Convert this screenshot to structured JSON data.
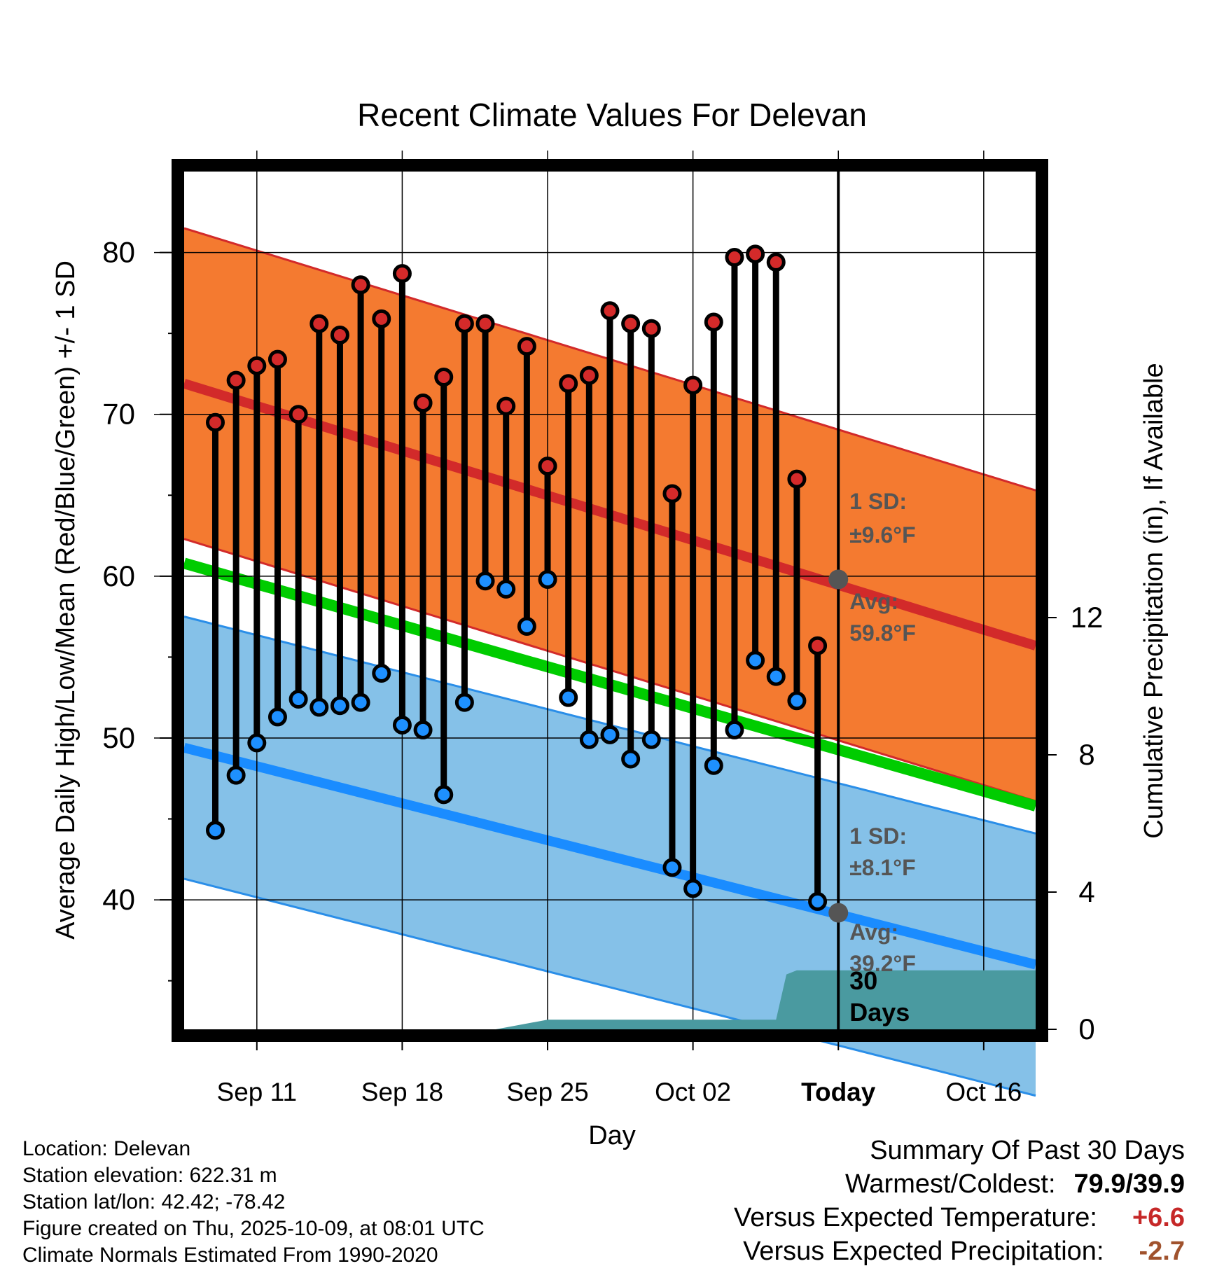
{
  "chart_data": {
    "type": "line",
    "title": "Recent Climate Values For Delevan",
    "xlabel": "Day",
    "ylabel": "Average Daily High/Low/Mean (Red/Blue/Green) +/- 1 SD",
    "y2label": "Cumulative Precipitation (in), If Available",
    "xlim": [
      -1.5,
      39.5
    ],
    "ylim": [
      32,
      85
    ],
    "y2lim": [
      0,
      25
    ],
    "x_ticks": [
      {
        "day": 2,
        "label": "Sep 11"
      },
      {
        "day": 9,
        "label": "Sep 18"
      },
      {
        "day": 16,
        "label": "Sep 25"
      },
      {
        "day": 23,
        "label": "Oct 02"
      },
      {
        "day": 30,
        "label": "Today"
      },
      {
        "day": 37,
        "label": "Oct 16"
      }
    ],
    "y_ticks": [
      40,
      50,
      60,
      70,
      80
    ],
    "y2_ticks": [
      0,
      4,
      8,
      12
    ],
    "normals": {
      "days": [
        -1.5,
        39.5
      ],
      "high_mean": [
        71.9,
        55.7
      ],
      "high_sd": 9.6,
      "low_mean": [
        49.4,
        36.0
      ],
      "low_sd": 8.1,
      "mean": [
        60.8,
        45.8
      ]
    },
    "series": [
      {
        "name": "High",
        "values": [
          69.5,
          72.1,
          73.0,
          73.4,
          70.0,
          75.6,
          74.9,
          78.0,
          75.9,
          78.7,
          70.7,
          72.3,
          75.6,
          75.6,
          70.5,
          74.2,
          66.8,
          71.9,
          72.4,
          76.4,
          75.6,
          75.3,
          65.1,
          71.8,
          75.7,
          79.7,
          79.9,
          79.4,
          66.0,
          55.7
        ]
      },
      {
        "name": "Low",
        "values": [
          44.3,
          47.7,
          49.7,
          51.3,
          52.4,
          51.9,
          52.0,
          52.2,
          54.0,
          50.8,
          50.5,
          46.5,
          52.2,
          59.7,
          59.2,
          56.9,
          59.8,
          52.5,
          49.9,
          50.2,
          48.7,
          49.9,
          42.0,
          40.7,
          48.3,
          50.5,
          54.8,
          53.8,
          52.3,
          39.9
        ]
      },
      {
        "name": "Cumulative Precipitation",
        "x": [
          13.5,
          16,
          26,
          27,
          27.5,
          28,
          39.5
        ],
        "values": [
          0,
          0.28,
          0.28,
          0.28,
          1.6,
          1.72,
          1.72
        ]
      }
    ],
    "annotations": {
      "high_sd_label": "1 SD:",
      "high_sd_value": "±9.6°F",
      "high_avg_label": "Avg:",
      "high_avg_value": "59.8°F",
      "high_avg_point": 59.8,
      "low_sd_label": "1 SD:",
      "low_sd_value": "±8.1°F",
      "low_avg_label": "Avg:",
      "low_avg_value": "39.2°F",
      "low_avg_point": 39.2,
      "days_label_1": "30",
      "days_label_2": "Days"
    },
    "colors": {
      "high_band": "#f47a30",
      "high_line": "#d22a2a",
      "low_band": "#85c1e8",
      "low_line": "#1a8cff",
      "low_edge": "#2a8ee8",
      "mean_line": "#00cc00",
      "precip": "#4a9aa0",
      "high_dot": "#d42a2a",
      "low_dot": "#1e90ff",
      "avg_dot": "#555555",
      "annotation": "#555555"
    }
  },
  "footer": {
    "location": "Location: Delevan",
    "elevation": "Station elevation: 622.31 m",
    "latlon": "Station lat/lon: 42.42; -78.42",
    "created": "Figure created on Thu, 2025-10-09, at 08:01 UTC",
    "normals": "Climate Normals Estimated From 1990-2020"
  },
  "summary": {
    "title": "Summary Of Past 30 Days",
    "warm_cold_label": "Warmest/Coldest:",
    "warm_cold_value": "79.9/39.9",
    "temp_label": "Versus Expected Temperature:",
    "temp_value": "+6.6",
    "temp_color": "#c62828",
    "precip_label": "Versus Expected Precipitation:",
    "precip_value": "-2.7",
    "precip_color": "#a0522d"
  }
}
